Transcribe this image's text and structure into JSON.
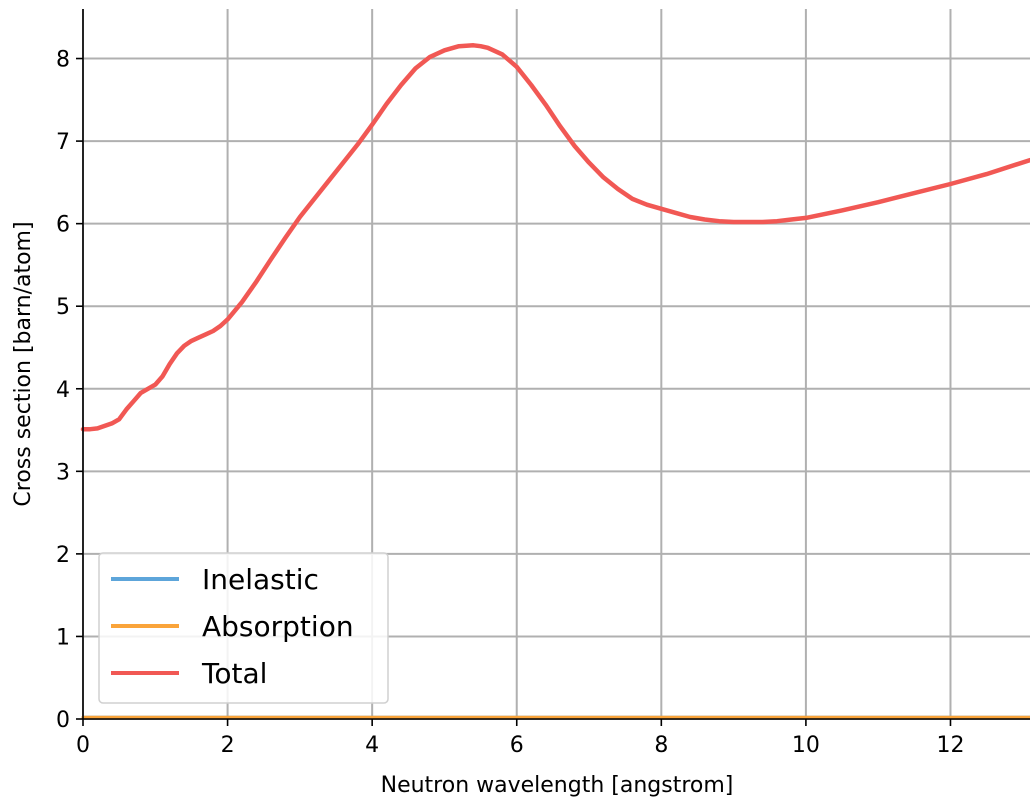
{
  "chart_data": {
    "type": "line",
    "title": "",
    "xlabel": "Neutron wavelength [angstrom]",
    "ylabel": "Cross section [barn/atom]",
    "xlim": [
      0,
      13.1
    ],
    "ylim": [
      0,
      8.6
    ],
    "xticks": [
      0,
      2,
      4,
      6,
      8,
      10,
      12
    ],
    "yticks": [
      0,
      1,
      2,
      3,
      4,
      5,
      6,
      7,
      8
    ],
    "grid": true,
    "legend_position": "lower-left",
    "series": [
      {
        "name": "Inelastic",
        "color": "#5DA5DA",
        "x": [
          0,
          13.1
        ],
        "y": [
          0.02,
          0.02
        ]
      },
      {
        "name": "Absorption",
        "color": "#FAA43A",
        "x": [
          0,
          13.1
        ],
        "y": [
          0.02,
          0.02
        ]
      },
      {
        "name": "Total",
        "color": "#F15854",
        "x": [
          0,
          0.1,
          0.2,
          0.3,
          0.4,
          0.5,
          0.6,
          0.7,
          0.8,
          1.0,
          1.1,
          1.2,
          1.3,
          1.4,
          1.5,
          1.6,
          1.7,
          1.8,
          1.9,
          2.0,
          2.2,
          2.4,
          2.6,
          2.8,
          3.0,
          3.2,
          3.4,
          3.6,
          3.8,
          4.0,
          4.2,
          4.4,
          4.6,
          4.8,
          5.0,
          5.2,
          5.4,
          5.5,
          5.6,
          5.8,
          6.0,
          6.2,
          6.4,
          6.6,
          6.8,
          7.0,
          7.2,
          7.4,
          7.6,
          7.8,
          8.0,
          8.2,
          8.4,
          8.6,
          8.8,
          9.0,
          9.2,
          9.4,
          9.6,
          9.8,
          10.0,
          10.5,
          11.0,
          11.5,
          12.0,
          12.5,
          13.1
        ],
        "y": [
          3.51,
          3.51,
          3.52,
          3.55,
          3.58,
          3.63,
          3.75,
          3.85,
          3.95,
          4.05,
          4.15,
          4.3,
          4.43,
          4.52,
          4.58,
          4.62,
          4.66,
          4.7,
          4.76,
          4.84,
          5.05,
          5.3,
          5.57,
          5.83,
          6.08,
          6.3,
          6.52,
          6.74,
          6.96,
          7.2,
          7.45,
          7.68,
          7.88,
          8.02,
          8.1,
          8.15,
          8.16,
          8.15,
          8.13,
          8.05,
          7.9,
          7.68,
          7.44,
          7.18,
          6.94,
          6.74,
          6.56,
          6.42,
          6.3,
          6.23,
          6.18,
          6.13,
          6.08,
          6.05,
          6.03,
          6.02,
          6.02,
          6.02,
          6.03,
          6.05,
          6.07,
          6.16,
          6.26,
          6.37,
          6.48,
          6.6,
          6.77
        ]
      }
    ]
  }
}
